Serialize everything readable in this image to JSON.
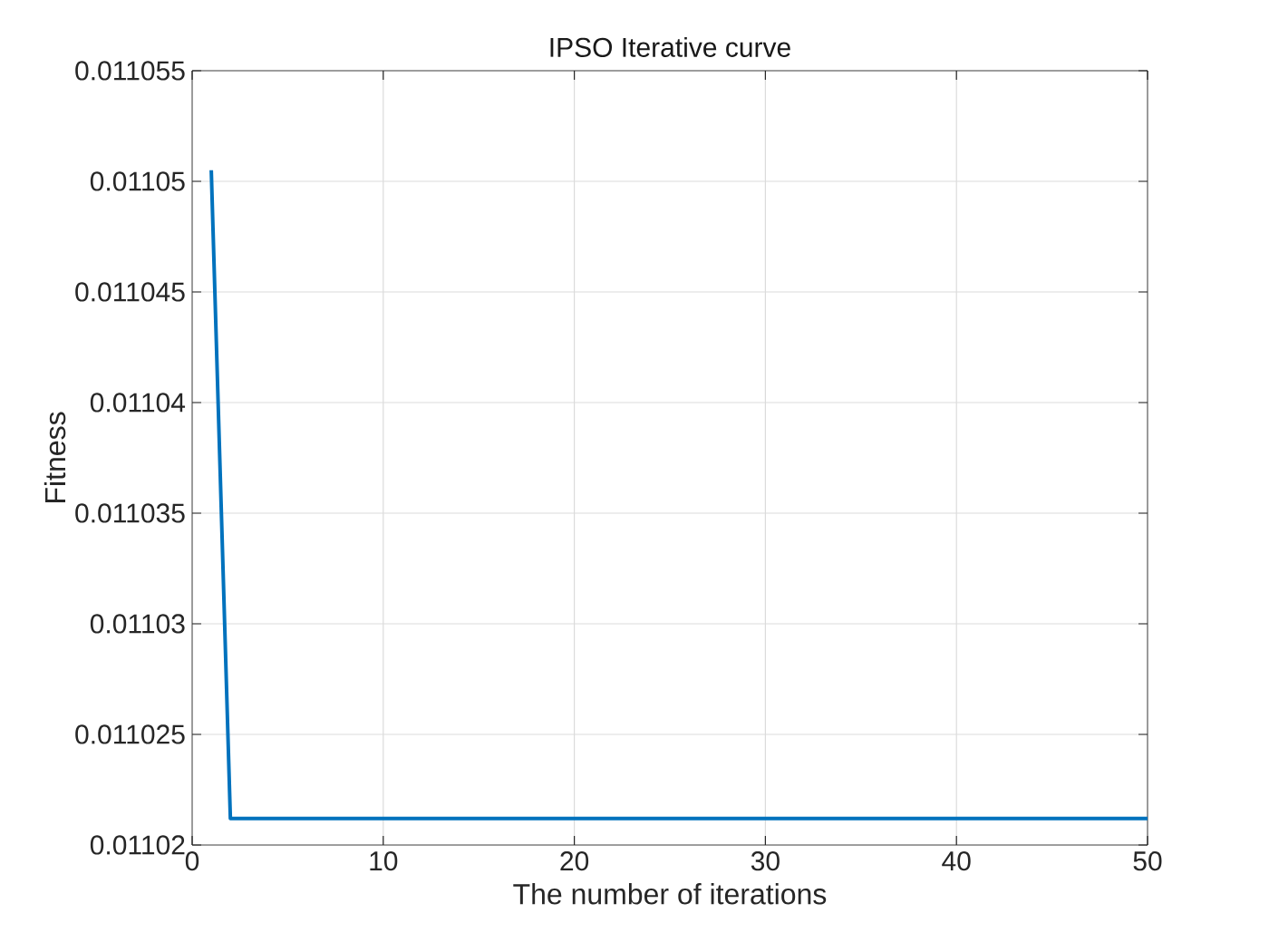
{
  "chart_data": {
    "type": "line",
    "title": "IPSO Iterative curve",
    "xlabel": "The number of iterations",
    "ylabel": "Fitness",
    "x": [
      1,
      2,
      50
    ],
    "series": [
      {
        "color": "#0072bd",
        "values": [
          0.0110505,
          0.0110212,
          0.0110212
        ]
      }
    ],
    "xlim": [
      0,
      50
    ],
    "ylim": [
      0.01102,
      0.011055
    ],
    "xticks": [
      0,
      10,
      20,
      30,
      40,
      50
    ],
    "yticks": [
      0.01102,
      0.011025,
      0.01103,
      0.011035,
      0.01104,
      0.011045,
      0.01105,
      0.011055
    ],
    "grid": true
  }
}
